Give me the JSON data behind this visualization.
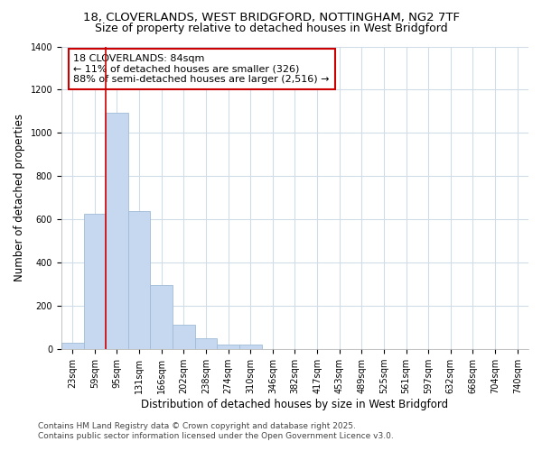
{
  "title_line1": "18, CLOVERLANDS, WEST BRIDGFORD, NOTTINGHAM, NG2 7TF",
  "title_line2": "Size of property relative to detached houses in West Bridgford",
  "xlabel": "Distribution of detached houses by size in West Bridgford",
  "ylabel": "Number of detached properties",
  "categories": [
    "23sqm",
    "59sqm",
    "95sqm",
    "131sqm",
    "166sqm",
    "202sqm",
    "238sqm",
    "274sqm",
    "310sqm",
    "346sqm",
    "382sqm",
    "417sqm",
    "453sqm",
    "489sqm",
    "525sqm",
    "561sqm",
    "597sqm",
    "632sqm",
    "668sqm",
    "704sqm",
    "740sqm"
  ],
  "values": [
    30,
    625,
    1095,
    640,
    295,
    115,
    50,
    20,
    20,
    0,
    0,
    0,
    0,
    0,
    0,
    0,
    0,
    0,
    0,
    0,
    0
  ],
  "bar_color": "#c5d8f0",
  "bar_edge_color": "#a0bcd8",
  "vline_x": 1.5,
  "vline_color": "#cc0000",
  "annotation_text": "18 CLOVERLANDS: 84sqm\n← 11% of detached houses are smaller (326)\n88% of semi-detached houses are larger (2,516) →",
  "annotation_box_facecolor": "white",
  "annotation_box_edgecolor": "#cc0000",
  "ylim": [
    0,
    1400
  ],
  "yticks": [
    0,
    200,
    400,
    600,
    800,
    1000,
    1200,
    1400
  ],
  "background_color": "#ffffff",
  "grid_color": "#d0dce8",
  "footer_line1": "Contains HM Land Registry data © Crown copyright and database right 2025.",
  "footer_line2": "Contains public sector information licensed under the Open Government Licence v3.0.",
  "title1_fontsize": 9.5,
  "title2_fontsize": 9,
  "axis_label_fontsize": 8.5,
  "tick_fontsize": 7,
  "annotation_fontsize": 8,
  "footer_fontsize": 6.5
}
